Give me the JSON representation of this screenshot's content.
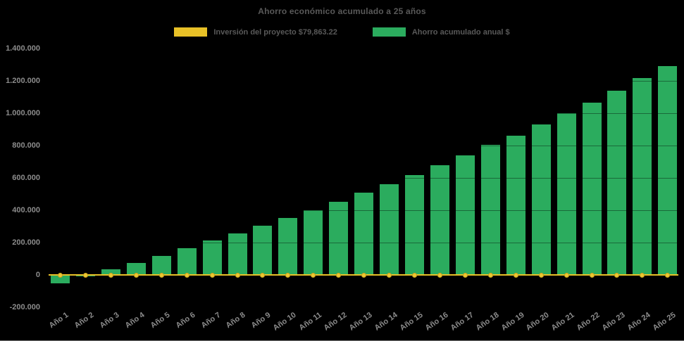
{
  "chart": {
    "title": "Ahorro económico acumulado a 25 años"
  },
  "legend": {
    "investment_label": "Inversión del proyecto $79,863.22",
    "savings_label": "Ahorro acumulado anual $"
  },
  "colors": {
    "background": "#000000",
    "bar_green": "#2BAC5E",
    "line_yellow": "#E8C127",
    "marker_yellow": "#EDC732",
    "marker_edge": "#C9A21E",
    "title_text": "#595959",
    "axis_text": "#8C8C8C",
    "gridline": "rgba(0,0,0,0.38)",
    "bottom_border": "#6E6E6E"
  },
  "chart_data": {
    "type": "bar",
    "title": "Ahorro económico acumulado a 25 años",
    "categories": [
      "Año 1",
      "Año 2",
      "Año 3",
      "Año 4",
      "Año 5",
      "Año 6",
      "Año 7",
      "Año 8",
      "Año 9",
      "Año 10",
      "Año 11",
      "Año 12",
      "Año 13",
      "Año 14",
      "Año 15",
      "Año 16",
      "Año 17",
      "Año 18",
      "Año 19",
      "Año 20",
      "Año 21",
      "Año 22",
      "Año 23",
      "Año 24",
      "Año 25"
    ],
    "series": [
      {
        "name": "Ahorro acumulado anual $",
        "type": "bar",
        "color": "#2BAC5E",
        "values": [
          -52000,
          -8000,
          35000,
          76000,
          119000,
          165000,
          211000,
          258000,
          306000,
          353000,
          400000,
          452000,
          508000,
          562000,
          616000,
          677000,
          738000,
          803000,
          863000,
          929000,
          1001000,
          1065000,
          1140000,
          1216000,
          1293000
        ]
      },
      {
        "name": "Inversión del proyecto $79,863.22",
        "type": "line",
        "color": "#E8C127",
        "values": [
          0,
          0,
          0,
          0,
          0,
          0,
          0,
          0,
          0,
          0,
          0,
          0,
          0,
          0,
          0,
          0,
          0,
          0,
          0,
          0,
          0,
          0,
          0,
          0,
          0
        ]
      }
    ],
    "ylim": [
      -200000,
      1400000
    ],
    "y_ticks": [
      {
        "value": 1400000,
        "label": "1.400.000"
      },
      {
        "value": 1200000,
        "label": "1.200.000"
      },
      {
        "value": 1000000,
        "label": "1.000.000"
      },
      {
        "value": 800000,
        "label": "800.000"
      },
      {
        "value": 600000,
        "label": "600.000"
      },
      {
        "value": 400000,
        "label": "400.000"
      },
      {
        "value": 200000,
        "label": "200.000"
      },
      {
        "value": 0,
        "label": "0"
      },
      {
        "value": -200000,
        "label": "-200.000"
      }
    ],
    "grid": "horizontal",
    "legend_position": "top"
  }
}
